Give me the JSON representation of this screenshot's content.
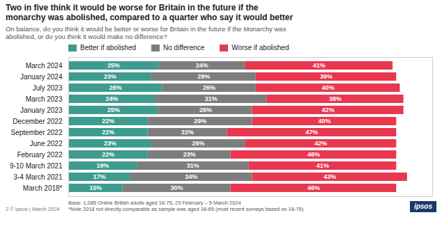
{
  "chart_data": {
    "type": "bar",
    "orientation": "horizontal",
    "stacked": true,
    "title": "Two in five think it would be worse for Britain in the future if the\nmonarchy was abolished, compared to a quarter who say it would better",
    "subtitle": "On balance, do you think it would be better or worse for Britain in the future if the Monarchy was\nabolished, or do you think it would make no difference?",
    "categories": [
      "March 2024",
      "January 2024",
      "July 2023",
      "March 2023",
      "January 2023",
      "December 2022",
      "September 2022",
      "June 2022",
      "February 2022",
      "9-10 March 2021",
      "3-4 March 2021",
      "March 2018*"
    ],
    "series": [
      {
        "name": "Better if abolished",
        "color": "#3d9b8f",
        "values": [
          25,
          23,
          26,
          24,
          25,
          22,
          22,
          23,
          22,
          19,
          17,
          15
        ],
        "value_labels": [
          "25%",
          "23%",
          "26%",
          "24%",
          "25%",
          "22%",
          "22%",
          "23%",
          "22%",
          "19%",
          "17%",
          "15%"
        ]
      },
      {
        "name": "No difference",
        "color": "#7d7d7d",
        "values": [
          24,
          29,
          26,
          31,
          26,
          29,
          22,
          26,
          23,
          31,
          34,
          30
        ],
        "value_labels": [
          "24%",
          "29%",
          "26%",
          "31%",
          "26%",
          "29%",
          "22%",
          "26%",
          "23%",
          "31%",
          "34%",
          "30%"
        ]
      },
      {
        "name": "Worse if abolished",
        "color": "#e8374f",
        "values": [
          41,
          39,
          40,
          38,
          42,
          40,
          47,
          42,
          46,
          41,
          43,
          46
        ],
        "value_labels": [
          "41%",
          "39%",
          "40%",
          "38%",
          "42%",
          "40%",
          "47%",
          "42%",
          "46%",
          "41%",
          "43%",
          "46%"
        ]
      }
    ],
    "xlim": [
      0,
      101
    ],
    "xticks": [],
    "tick_labels": "y",
    "grid": false,
    "legend": "top",
    "data_labels": true,
    "annotations": [
      "Base: 1,085 Online British adults aged 18-75, 29 February – 5 March 2024",
      "*Note 2018 not directly comparable as sample was aged 18-65 (most recent surveys based on 18-75)",
      "2    © Ipsos | March 2024",
      "ipsos"
    ]
  }
}
